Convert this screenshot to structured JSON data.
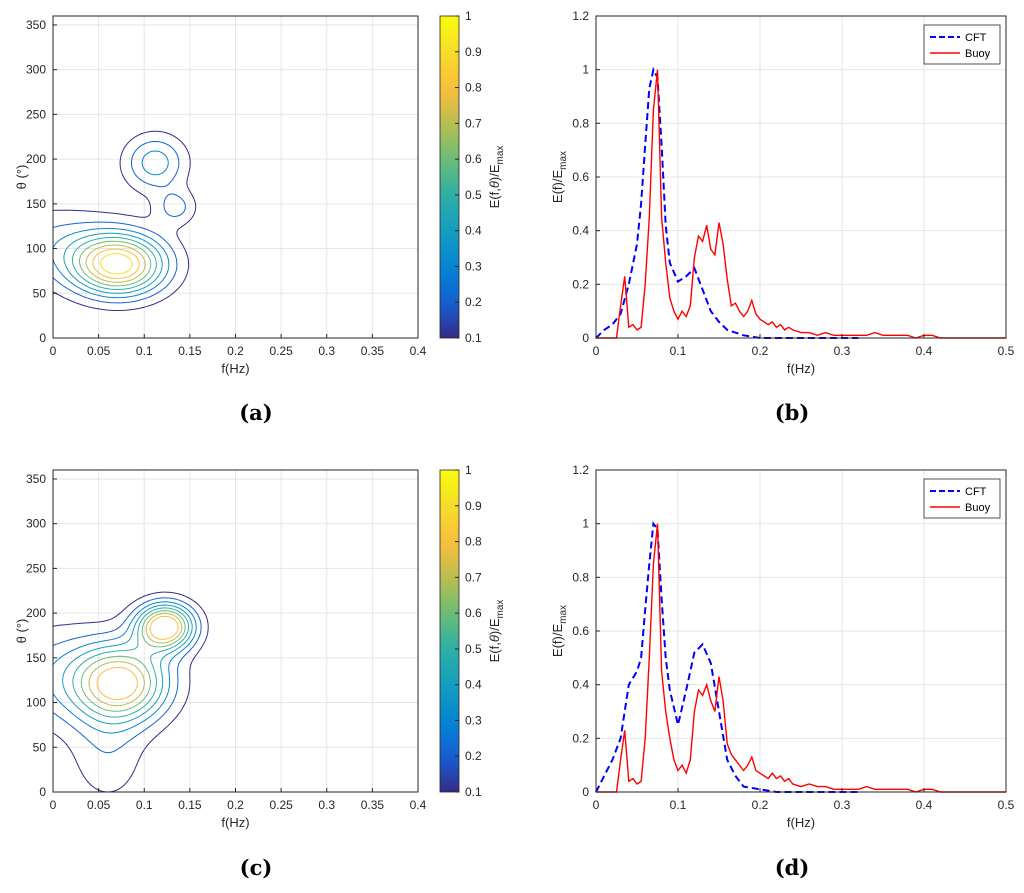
{
  "figure": {
    "panels": [
      "(a)",
      "(b)",
      "(c)",
      "(d)"
    ]
  },
  "chart_data": [
    {
      "panel": "(a)",
      "type": "contour",
      "xlabel": "f(Hz)",
      "ylabel": "θ (°)",
      "xlim": [
        0,
        0.4
      ],
      "ylim": [
        0,
        360
      ],
      "xticks": [
        0,
        0.05,
        0.1,
        0.15,
        0.2,
        0.25,
        0.3,
        0.35,
        0.4
      ],
      "yticks": [
        0,
        50,
        100,
        150,
        200,
        250,
        300,
        350
      ],
      "colorbar": {
        "label": "E(f,θ)/E_max",
        "label_main": "E(f,",
        "label_theta": "θ",
        "label_tail": ")/E",
        "label_sub": "max",
        "ticks": [
          0.1,
          0.2,
          0.3,
          0.4,
          0.5,
          0.6,
          0.7,
          0.8,
          0.9,
          1
        ]
      },
      "peaks": [
        {
          "f": 0.072,
          "theta": 82,
          "amp": 1.0,
          "sf": 0.036,
          "st": 24
        },
        {
          "f": 0.112,
          "theta": 196,
          "amp": 0.38,
          "sf": 0.024,
          "st": 22
        },
        {
          "f": 0.135,
          "theta": 146,
          "amp": 0.24,
          "sf": 0.016,
          "st": 14
        },
        {
          "f": 0.0,
          "theta": 105,
          "amp": 0.22,
          "sf": 0.05,
          "st": 30
        }
      ],
      "levels": [
        0.1,
        0.2,
        0.3,
        0.4,
        0.5,
        0.6,
        0.7,
        0.8,
        0.9
      ]
    },
    {
      "panel": "(b)",
      "type": "line",
      "xlabel": "f(Hz)",
      "ylabel": "E(f)/E_max",
      "ylabel_main": "E(f)/E",
      "ylabel_sub": "max",
      "xlim": [
        0,
        0.5
      ],
      "ylim": [
        0,
        1.2
      ],
      "xticks": [
        0,
        0.1,
        0.2,
        0.3,
        0.4,
        0.5
      ],
      "yticks": [
        0,
        0.2,
        0.4,
        0.6,
        0.8,
        1,
        1.2
      ],
      "legend": {
        "position": "top-right",
        "entries": [
          "CFT",
          "Buoy"
        ]
      },
      "series": [
        {
          "name": "CFT",
          "color": "#0000ff",
          "style": "dashed",
          "x": [
            0,
            0.01,
            0.02,
            0.03,
            0.04,
            0.05,
            0.055,
            0.06,
            0.065,
            0.07,
            0.075,
            0.08,
            0.085,
            0.09,
            0.1,
            0.11,
            0.12,
            0.13,
            0.14,
            0.15,
            0.16,
            0.18,
            0.2,
            0.22,
            0.25,
            0.28,
            0.32
          ],
          "y": [
            0,
            0.03,
            0.05,
            0.09,
            0.2,
            0.35,
            0.5,
            0.72,
            0.93,
            1.0,
            0.97,
            0.72,
            0.42,
            0.28,
            0.21,
            0.23,
            0.26,
            0.18,
            0.1,
            0.06,
            0.03,
            0.01,
            0,
            0,
            0,
            0,
            0
          ]
        },
        {
          "name": "Buoy",
          "color": "#ff0000",
          "style": "solid",
          "x": [
            0,
            0.01,
            0.02,
            0.025,
            0.03,
            0.035,
            0.04,
            0.045,
            0.05,
            0.055,
            0.06,
            0.065,
            0.07,
            0.075,
            0.08,
            0.085,
            0.09,
            0.095,
            0.1,
            0.105,
            0.11,
            0.115,
            0.12,
            0.125,
            0.13,
            0.135,
            0.14,
            0.145,
            0.15,
            0.155,
            0.16,
            0.165,
            0.17,
            0.175,
            0.18,
            0.185,
            0.19,
            0.195,
            0.2,
            0.205,
            0.21,
            0.215,
            0.22,
            0.225,
            0.23,
            0.235,
            0.24,
            0.25,
            0.26,
            0.27,
            0.28,
            0.29,
            0.3,
            0.31,
            0.32,
            0.33,
            0.34,
            0.35,
            0.36,
            0.37,
            0.38,
            0.39,
            0.4,
            0.41,
            0.42,
            0.43,
            0.45,
            0.5
          ],
          "y": [
            0,
            0,
            0,
            0,
            0.12,
            0.23,
            0.04,
            0.05,
            0.03,
            0.04,
            0.2,
            0.45,
            0.85,
            1.0,
            0.45,
            0.28,
            0.15,
            0.1,
            0.07,
            0.1,
            0.08,
            0.12,
            0.3,
            0.38,
            0.36,
            0.42,
            0.33,
            0.31,
            0.43,
            0.35,
            0.22,
            0.12,
            0.13,
            0.1,
            0.08,
            0.1,
            0.14,
            0.09,
            0.07,
            0.06,
            0.05,
            0.06,
            0.04,
            0.05,
            0.03,
            0.04,
            0.03,
            0.02,
            0.02,
            0.01,
            0.02,
            0.01,
            0.01,
            0.01,
            0.01,
            0.01,
            0.02,
            0.01,
            0.01,
            0.01,
            0.01,
            0,
            0.01,
            0.01,
            0,
            0,
            0,
            0
          ]
        }
      ]
    },
    {
      "panel": "(c)",
      "type": "contour",
      "xlabel": "f(Hz)",
      "ylabel": "θ (°)",
      "xlim": [
        0,
        0.4
      ],
      "ylim": [
        0,
        360
      ],
      "xticks": [
        0,
        0.05,
        0.1,
        0.15,
        0.2,
        0.25,
        0.3,
        0.35,
        0.4
      ],
      "yticks": [
        0,
        50,
        100,
        150,
        200,
        250,
        300,
        350
      ],
      "colorbar": {
        "label": "E(f,θ)/E_max",
        "label_main": "E(f,",
        "label_theta": "θ",
        "label_tail": ")/E",
        "label_sub": "max",
        "ticks": [
          0.1,
          0.2,
          0.3,
          0.4,
          0.5,
          0.6,
          0.7,
          0.8,
          0.9,
          1
        ]
      },
      "peaks": [
        {
          "f": 0.075,
          "theta": 122,
          "amp": 0.72,
          "sf": 0.036,
          "st": 30
        },
        {
          "f": 0.123,
          "theta": 185,
          "amp": 0.82,
          "sf": 0.022,
          "st": 18
        },
        {
          "f": 0.06,
          "theta": 40,
          "amp": 0.14,
          "sf": 0.03,
          "st": 40
        },
        {
          "f": 0.0,
          "theta": 130,
          "amp": 0.2,
          "sf": 0.05,
          "st": 40
        }
      ],
      "levels": [
        0.1,
        0.2,
        0.3,
        0.4,
        0.5,
        0.6,
        0.7,
        0.8
      ]
    },
    {
      "panel": "(d)",
      "type": "line",
      "xlabel": "f(Hz)",
      "ylabel": "E(f)/E_max",
      "ylabel_main": "E(f)/E",
      "ylabel_sub": "max",
      "xlim": [
        0,
        0.5
      ],
      "ylim": [
        0,
        1.2
      ],
      "xticks": [
        0,
        0.1,
        0.2,
        0.3,
        0.4,
        0.5
      ],
      "yticks": [
        0,
        0.2,
        0.4,
        0.6,
        0.8,
        1,
        1.2
      ],
      "legend": {
        "position": "top-right",
        "entries": [
          "CFT",
          "Buoy"
        ]
      },
      "series": [
        {
          "name": "CFT",
          "color": "#0000ff",
          "style": "dashed",
          "x": [
            0,
            0.01,
            0.02,
            0.03,
            0.04,
            0.05,
            0.055,
            0.06,
            0.065,
            0.07,
            0.075,
            0.08,
            0.085,
            0.09,
            0.1,
            0.11,
            0.12,
            0.13,
            0.14,
            0.15,
            0.16,
            0.17,
            0.18,
            0.2,
            0.22,
            0.25,
            0.28,
            0.32
          ],
          "y": [
            0,
            0.06,
            0.12,
            0.2,
            0.4,
            0.45,
            0.5,
            0.68,
            0.85,
            1.0,
            0.98,
            0.72,
            0.5,
            0.38,
            0.25,
            0.38,
            0.52,
            0.55,
            0.48,
            0.3,
            0.12,
            0.06,
            0.02,
            0.01,
            0,
            0,
            0,
            0
          ]
        },
        {
          "name": "Buoy",
          "color": "#ff0000",
          "style": "solid",
          "x": [
            0,
            0.01,
            0.02,
            0.025,
            0.03,
            0.035,
            0.04,
            0.045,
            0.05,
            0.055,
            0.06,
            0.065,
            0.07,
            0.075,
            0.08,
            0.085,
            0.09,
            0.095,
            0.1,
            0.105,
            0.11,
            0.115,
            0.12,
            0.125,
            0.13,
            0.135,
            0.14,
            0.145,
            0.15,
            0.155,
            0.16,
            0.165,
            0.17,
            0.175,
            0.18,
            0.185,
            0.19,
            0.195,
            0.2,
            0.205,
            0.21,
            0.215,
            0.22,
            0.225,
            0.23,
            0.235,
            0.24,
            0.25,
            0.26,
            0.27,
            0.28,
            0.29,
            0.3,
            0.31,
            0.32,
            0.33,
            0.34,
            0.35,
            0.36,
            0.37,
            0.38,
            0.39,
            0.4,
            0.41,
            0.42,
            0.43,
            0.45,
            0.5
          ],
          "y": [
            0,
            0,
            0,
            0,
            0.12,
            0.23,
            0.04,
            0.05,
            0.03,
            0.04,
            0.2,
            0.5,
            0.85,
            1.0,
            0.45,
            0.3,
            0.2,
            0.12,
            0.08,
            0.1,
            0.07,
            0.12,
            0.3,
            0.38,
            0.36,
            0.4,
            0.34,
            0.3,
            0.43,
            0.34,
            0.18,
            0.14,
            0.12,
            0.1,
            0.08,
            0.1,
            0.13,
            0.08,
            0.07,
            0.06,
            0.05,
            0.07,
            0.05,
            0.06,
            0.04,
            0.05,
            0.03,
            0.02,
            0.03,
            0.02,
            0.02,
            0.01,
            0.01,
            0.01,
            0.01,
            0.02,
            0.01,
            0.01,
            0.01,
            0.01,
            0.01,
            0,
            0.01,
            0.01,
            0,
            0,
            0,
            0
          ]
        }
      ]
    }
  ]
}
